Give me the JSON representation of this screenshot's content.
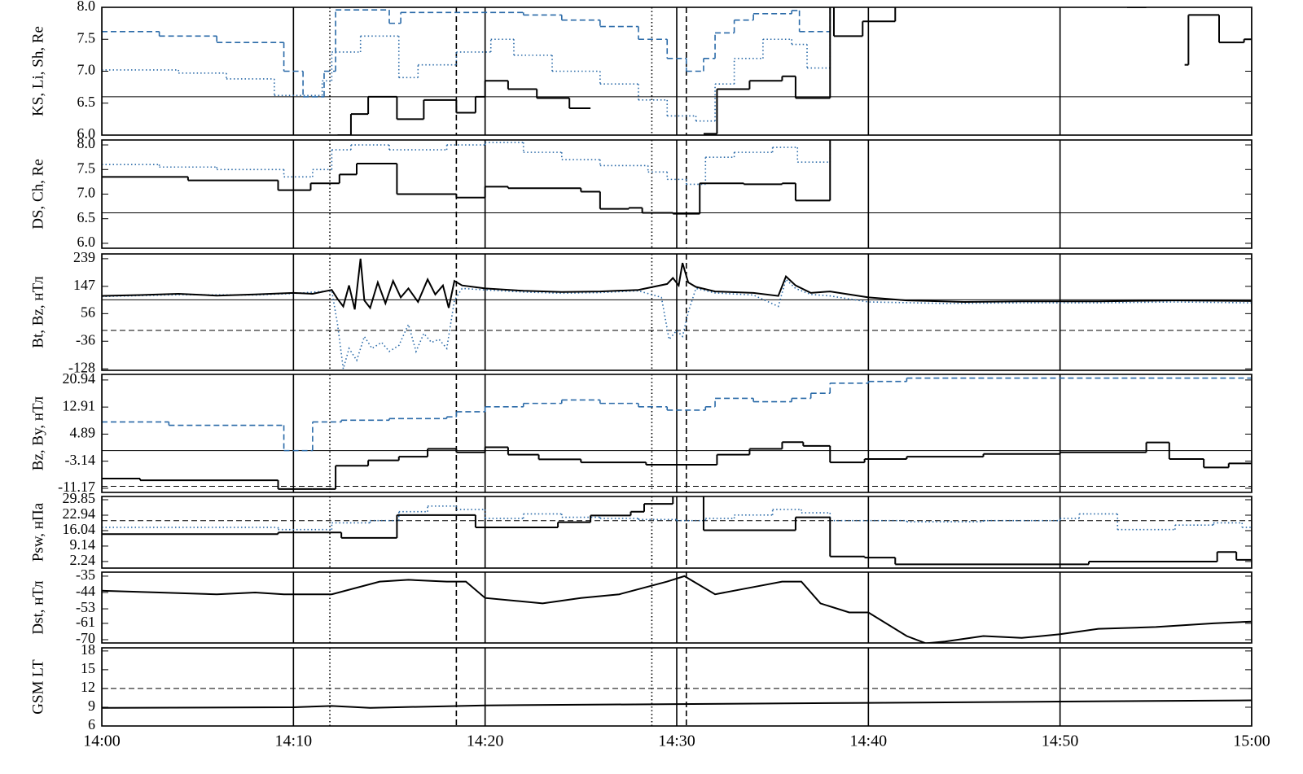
{
  "chart_data": [
    {
      "type": "line",
      "step": true,
      "ylabel": "KS, Li, Sh, Re",
      "ylim": [
        6,
        8
      ],
      "yticks": [
        {
          "value": 6,
          "label": "6.0"
        },
        6.5,
        {
          "value": 7,
          "label": "7.0"
        },
        7.5,
        {
          "value": 8,
          "label": "8.0"
        }
      ],
      "hlines": [
        {
          "y": 6.6,
          "style": "solid"
        }
      ],
      "series": [
        {
          "color": "#2a6aa8",
          "style": "dashed",
          "x": [
            840,
            843,
            846,
            849.5,
            850.5,
            851.6,
            852.2,
            855,
            855.6,
            862,
            864,
            866,
            868,
            869.5,
            870.5,
            871.4,
            872,
            873,
            874,
            876,
            876.4,
            878,
            879
          ],
          "values": [
            7.62,
            7.55,
            7.45,
            7.0,
            6.6,
            7.0,
            7.96,
            7.75,
            7.92,
            7.88,
            7.8,
            7.7,
            7.5,
            7.2,
            7.0,
            7.2,
            7.6,
            7.8,
            7.9,
            7.95,
            7.62,
            8.3,
            null
          ]
        },
        {
          "color": "#2a6aa8",
          "style": "dotted",
          "x": [
            840,
            844,
            846.5,
            849,
            851.5,
            852,
            853.5,
            855.5,
            856.5,
            858.5,
            860.3,
            861.5,
            863.5,
            866,
            868,
            869.5,
            871,
            872,
            873,
            874.5,
            876,
            876.8,
            878,
            879
          ],
          "values": [
            7.02,
            6.97,
            6.88,
            6.62,
            6.85,
            7.3,
            7.55,
            6.9,
            7.1,
            7.3,
            7.5,
            7.25,
            7.0,
            6.8,
            6.55,
            6.3,
            6.22,
            6.8,
            7.2,
            7.5,
            7.42,
            7.05,
            8.3,
            null
          ]
        },
        {
          "color": "#000000",
          "style": "solid",
          "x": [
            852.3,
            853.0,
            853.9,
            855.4,
            856.8,
            858.5,
            859.5,
            860.0,
            861.2,
            862.7,
            864.4,
            865.5,
            871.4,
            872.1,
            873.8,
            875.5,
            876.2,
            878.0,
            878.2,
            879.7,
            881.4,
            882.5,
            893.5,
            894.5,
            896.5,
            896.7,
            898.3,
            899.6,
            900
          ],
          "values": [
            6.0,
            6.33,
            6.6,
            6.25,
            6.55,
            6.35,
            6.6,
            6.85,
            6.72,
            6.58,
            6.42,
            null,
            6.02,
            6.72,
            6.85,
            6.92,
            6.58,
            8.3,
            7.55,
            7.78,
            8.3,
            null,
            8.0,
            null,
            7.1,
            7.88,
            7.45,
            7.5,
            7.5
          ]
        }
      ]
    },
    {
      "type": "line",
      "step": true,
      "ylabel": "DS, Ch, Re",
      "ylim": [
        5.9,
        8.1
      ],
      "yticks": [
        {
          "value": 6,
          "label": "6.0"
        },
        6.5,
        {
          "value": 7,
          "label": "7.0"
        },
        7.5,
        {
          "value": 8,
          "label": "8.0"
        }
      ],
      "hlines": [
        {
          "y": 6.62,
          "style": "solid"
        }
      ],
      "series": [
        {
          "color": "#2a6aa8",
          "style": "dotted",
          "x": [
            840,
            843,
            846,
            849.5,
            851,
            852,
            853,
            855,
            858,
            860,
            862,
            864,
            866,
            868.5,
            869.5,
            870.5,
            871.5,
            873,
            875,
            876.3,
            878,
            879
          ],
          "values": [
            7.6,
            7.55,
            7.5,
            7.35,
            7.5,
            7.9,
            8.0,
            7.9,
            8.0,
            8.05,
            7.85,
            7.7,
            7.58,
            7.45,
            7.3,
            7.2,
            7.75,
            7.85,
            7.95,
            7.65,
            8.3,
            null
          ]
        },
        {
          "color": "#000000",
          "style": "solid",
          "x": [
            840,
            844.5,
            849.2,
            850.9,
            852.4,
            853.3,
            855.4,
            858.5,
            860,
            861.2,
            865,
            866,
            867.5,
            868.2,
            869.8,
            871.2,
            873.5,
            875.5,
            876.2,
            878,
            879
          ],
          "values": [
            7.35,
            7.28,
            7.08,
            7.22,
            7.4,
            7.62,
            7.0,
            6.93,
            7.15,
            7.12,
            7.05,
            6.7,
            6.72,
            6.62,
            6.6,
            7.22,
            7.2,
            7.22,
            6.87,
            8.3,
            null
          ]
        }
      ]
    },
    {
      "type": "line",
      "step": false,
      "ylabel": "Bt, Bz, нТл",
      "ylim": [
        -133,
        255
      ],
      "yticks": [
        -128,
        -36,
        56,
        147,
        239
      ],
      "hlines": [
        {
          "y": 102,
          "style": "solid"
        },
        {
          "y": 0,
          "style": "dashed"
        }
      ],
      "series": [
        {
          "color": "#2a6aa8",
          "style": "dotted",
          "x": [
            840,
            844,
            848,
            850,
            852,
            852.3,
            852.6,
            852.9,
            853.3,
            853.7,
            854.1,
            854.6,
            855,
            855.5,
            856,
            856.4,
            856.8,
            857.2,
            857.6,
            858,
            858.4,
            858.8,
            860,
            862,
            864,
            866,
            868,
            869.2,
            869.6,
            870,
            870.3,
            870.6,
            871,
            872,
            874,
            875.3,
            875.7,
            876.2,
            877,
            878,
            880,
            884,
            888,
            892,
            896,
            900
          ],
          "values": [
            113,
            119,
            118,
            123,
            132,
            20,
            -128,
            -60,
            -100,
            -20,
            -60,
            -40,
            -70,
            -50,
            20,
            -70,
            -10,
            -40,
            -30,
            -60,
            100,
            140,
            135,
            128,
            124,
            126,
            132,
            110,
            -30,
            0,
            -20,
            60,
            140,
            125,
            118,
            80,
            170,
            140,
            120,
            115,
            95,
            90,
            92,
            92,
            95,
            92
          ]
        },
        {
          "color": "#000000",
          "style": "solid",
          "x": [
            840,
            842,
            844,
            846,
            848,
            850,
            851,
            852,
            852.3,
            852.6,
            852.9,
            853.2,
            853.5,
            853.7,
            854,
            854.4,
            854.8,
            855.2,
            855.6,
            856,
            856.5,
            857,
            857.4,
            857.8,
            858.1,
            858.4,
            858.8,
            860,
            862,
            864,
            866,
            868,
            869.5,
            869.8,
            870.1,
            870.3,
            870.6,
            871,
            872,
            874,
            875.3,
            875.7,
            876.2,
            877,
            878,
            880,
            882,
            885,
            888,
            892,
            896,
            900
          ],
          "values": [
            115,
            118,
            122,
            116,
            120,
            125,
            122,
            135,
            105,
            80,
            150,
            70,
            239,
            100,
            75,
            160,
            90,
            165,
            110,
            140,
            95,
            170,
            120,
            150,
            75,
            165,
            150,
            140,
            132,
            128,
            130,
            135,
            155,
            175,
            150,
            225,
            160,
            145,
            130,
            125,
            115,
            180,
            150,
            125,
            130,
            110,
            100,
            95,
            97,
            97,
            100,
            98
          ]
        }
      ]
    },
    {
      "type": "line",
      "step": true,
      "ylabel": "Bz, By, нТл",
      "ylim": [
        -12.4,
        22.6
      ],
      "yticks": [
        -11.17,
        -3.14,
        4.89,
        12.91,
        20.94
      ],
      "hlines": [
        {
          "y": 0,
          "style": "solid"
        },
        {
          "y": -10.6,
          "style": "dashed"
        }
      ],
      "series": [
        {
          "color": "#2a6aa8",
          "style": "dashed",
          "x": [
            840,
            843.5,
            849.5,
            851,
            852.5,
            855,
            858,
            858.5,
            860,
            862,
            864,
            866,
            868,
            869.5,
            871.5,
            872,
            874,
            876,
            877,
            878,
            880,
            882,
            900
          ],
          "values": [
            8.5,
            7.5,
            0,
            8.5,
            9.0,
            9.5,
            10.0,
            11.5,
            13.0,
            14.0,
            15.0,
            14.0,
            13.0,
            12.0,
            13.0,
            15.5,
            14.5,
            15.5,
            17.0,
            20.0,
            20.5,
            21.5,
            21.5
          ]
        },
        {
          "color": "#000000",
          "style": "solid",
          "x": [
            840,
            842,
            849.2,
            851,
            852.2,
            853.9,
            855.5,
            857,
            858.5,
            860,
            861.2,
            862.8,
            865,
            868.4,
            872.1,
            873.8,
            875.5,
            876.6,
            878,
            879.8,
            882,
            886,
            890,
            894.5,
            895.7,
            897.5,
            898.8,
            900
          ],
          "values": [
            -8.3,
            -8.8,
            -11.4,
            -11.4,
            -4.5,
            -2.9,
            -1.8,
            0.5,
            -0.5,
            1.0,
            -1.2,
            -2.6,
            -3.5,
            -4.2,
            -1.2,
            0.5,
            2.5,
            1.4,
            -3.5,
            -2.5,
            -1.8,
            -1.0,
            -0.5,
            2.4,
            -2.5,
            -5.0,
            -3.8,
            -3.6
          ]
        }
      ]
    },
    {
      "type": "line",
      "step": true,
      "ylabel": "Psw, нПа",
      "ylim": [
        -0.7,
        31.3
      ],
      "yticks": [
        2.24,
        9.14,
        16.04,
        22.94,
        29.85
      ],
      "hlines": [
        {
          "y": 20.5,
          "style": "dashed"
        }
      ],
      "series": [
        {
          "color": "#2a6aa8",
          "style": "dotted",
          "x": [
            840,
            849.2,
            852,
            854,
            855.5,
            857,
            858.5,
            860,
            862,
            864,
            866,
            868,
            870,
            871.5,
            873,
            875,
            876.5,
            878,
            882,
            886,
            890,
            891,
            893,
            896,
            898,
            899.5,
            900
          ],
          "values": [
            17.5,
            16.5,
            19.5,
            20.5,
            24.5,
            27.0,
            25.5,
            21.5,
            23.5,
            22.0,
            21.5,
            21.0,
            20.5,
            21.5,
            23.0,
            25.5,
            24.0,
            20.5,
            20.0,
            20.5,
            21.5,
            23.5,
            16.5,
            18.5,
            19.5,
            17.5,
            17.5
          ]
        },
        {
          "color": "#000000",
          "style": "solid",
          "x": [
            840,
            849.2,
            852.5,
            855.4,
            859.5,
            863.8,
            865.5,
            867.6,
            868.3,
            869.8,
            871.4,
            876.2,
            878,
            879.8,
            881.4,
            891.5,
            898.2,
            899.2,
            900
          ],
          "values": [
            14.5,
            15.2,
            12.8,
            23.0,
            17.5,
            19.8,
            22.8,
            24.5,
            28.0,
            31.5,
            16.2,
            22.0,
            4.5,
            4.0,
            1.0,
            2.2,
            6.5,
            3.0,
            3.0
          ]
        }
      ]
    },
    {
      "type": "line",
      "step": false,
      "ylabel": "Dst, нТл",
      "ylim": [
        -71.8,
        -32.8
      ],
      "yticks": [
        -70,
        -61,
        -53,
        -44,
        -35
      ],
      "series": [
        {
          "color": "#000000",
          "style": "solid",
          "x": [
            840,
            843,
            846,
            848,
            849.5,
            852,
            854.5,
            856,
            858,
            859,
            860,
            863,
            865,
            867,
            869.5,
            870.4,
            872,
            874,
            875.5,
            876.5,
            877.5,
            879,
            880,
            882,
            883,
            884,
            886,
            888,
            890,
            892,
            895,
            898,
            900
          ],
          "values": [
            -43,
            -44,
            -45,
            -44,
            -45,
            -45,
            -38,
            -37,
            -38,
            -38,
            -47,
            -50,
            -47,
            -45,
            -38,
            -35,
            -45,
            -41,
            -38,
            -38,
            -50,
            -55,
            -55,
            -68,
            -72,
            -71,
            -68,
            -69,
            -67,
            -64,
            -63,
            -61,
            -60
          ]
        }
      ]
    },
    {
      "type": "line",
      "step": false,
      "ylabel": "GSM LT",
      "ylim": [
        6,
        18.5
      ],
      "yticks": [
        6,
        9,
        12,
        15,
        18
      ],
      "hlines": [
        {
          "y": 12,
          "style": "dashed"
        }
      ],
      "series": [
        {
          "color": "#000000",
          "style": "solid",
          "x": [
            840,
            850,
            852,
            854,
            860,
            870,
            880,
            890,
            900
          ],
          "values": [
            8.9,
            9.0,
            9.2,
            8.9,
            9.3,
            9.5,
            9.7,
            9.9,
            10.1
          ]
        }
      ],
      "xlim": [
        840,
        900
      ],
      "xticks": [
        {
          "value": 840,
          "label": "14:00"
        },
        {
          "value": 850,
          "label": "14:10"
        },
        {
          "value": 860,
          "label": "14:20"
        },
        {
          "value": 870,
          "label": "14:30"
        },
        {
          "value": 880,
          "label": "14:40"
        },
        {
          "value": 890,
          "label": "14:50"
        },
        {
          "value": 900,
          "label": "15:00"
        }
      ],
      "vlines": [
        {
          "x": 851.9,
          "style": "dotted"
        },
        {
          "x": 858.5,
          "style": "dashed"
        },
        {
          "x": 868.7,
          "style": "dotted"
        },
        {
          "x": 870.5,
          "style": "dashed"
        }
      ]
    }
  ]
}
